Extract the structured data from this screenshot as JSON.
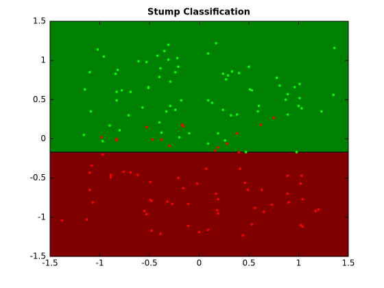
{
  "chart_data": {
    "type": "scatter",
    "title": "Stump Classification",
    "xlim": [
      -1.5,
      1.5
    ],
    "ylim": [
      -1.5,
      1.5
    ],
    "xticks": [
      -1.5,
      -1,
      -0.5,
      0,
      0.5,
      1,
      1.5
    ],
    "yticks": [
      -1.5,
      -1,
      -0.5,
      0,
      0.5,
      1,
      1.5
    ],
    "threshold": -0.17,
    "upper_color": "#008000",
    "lower_color": "#800000",
    "series": [
      {
        "color": "#00ff00",
        "x": [
          -1.02,
          -0.96,
          -1.1,
          -1.15,
          -1.09,
          -1.16,
          -0.9,
          -0.83,
          -0.84,
          -0.82,
          -0.78,
          -0.69,
          -0.83,
          -0.71,
          -0.8,
          -0.97,
          -0.61,
          -0.53,
          -0.42,
          -0.39,
          -0.51,
          -0.57,
          -0.51,
          -0.35,
          -0.31,
          -0.31,
          -0.22,
          -0.4,
          -0.21,
          -0.24,
          -0.29,
          -0.33,
          -0.4,
          -0.38,
          -0.29,
          -0.18,
          -0.24,
          -0.2,
          -0.1,
          0.17,
          0.09,
          0.24,
          0.29,
          0.27,
          0.33,
          0.4,
          0.09,
          0.13,
          0.24,
          0.32,
          0.38,
          0.19,
          0.26,
          0.09,
          0.5,
          0.51,
          0.53,
          0.59,
          0.6,
          0.78,
          0.81,
          0.87,
          0.89,
          0.96,
          1.01,
          1.01,
          1.0,
          1.03,
          0.98,
          0.89,
          1.23,
          1.36,
          1.35,
          0.47
        ],
        "values": [
          1.14,
          1.05,
          0.85,
          0.63,
          0.35,
          0.05,
          0.17,
          0.6,
          0.83,
          0.88,
          0.62,
          0.6,
          0.49,
          0.3,
          0.11,
          -0.03,
          0.99,
          0.98,
          1.06,
          0.9,
          0.66,
          0.4,
          0.65,
          1.12,
          1.2,
          1.01,
          1.03,
          0.79,
          0.92,
          0.85,
          0.73,
          0.35,
          0.21,
          0.08,
          0.42,
          0.49,
          0.37,
          0.02,
          0.07,
          1.22,
          1.09,
          0.83,
          0.81,
          0.76,
          0.86,
          0.84,
          0.49,
          0.46,
          0.37,
          0.3,
          0.31,
          0.07,
          -0.02,
          -0.06,
          0.92,
          0.63,
          0.62,
          0.35,
          0.42,
          0.78,
          0.68,
          0.5,
          0.57,
          0.66,
          0.7,
          0.52,
          0.42,
          0.39,
          -0.17,
          0.31,
          0.35,
          1.16,
          0.56,
          -0.17
        ]
      },
      {
        "color": "#ff0000",
        "x": [
          -1.38,
          -1.13,
          -1.1,
          -1.1,
          -1.07,
          -1.08,
          -0.98,
          -0.97,
          -0.89,
          -0.89,
          -0.83,
          -0.83,
          -0.76,
          -0.69,
          -0.62,
          -0.53,
          -0.49,
          -0.55,
          -0.53,
          -0.49,
          -0.48,
          -0.48,
          -0.39,
          -0.47,
          -0.38,
          -0.3,
          -0.32,
          -0.27,
          -0.21,
          -0.16,
          -0.17,
          -0.16,
          -0.11,
          -0.11,
          -0.02,
          0.0,
          0.07,
          0.09,
          0.17,
          0.19,
          0.18,
          0.19,
          0.16,
          0.19,
          0.28,
          0.38,
          0.41,
          0.4,
          0.46,
          0.49,
          0.44,
          0.62,
          0.63,
          0.56,
          0.53,
          0.65,
          0.75,
          0.73,
          0.89,
          0.89,
          0.9,
          1.03,
          1.02,
          1.04,
          1.02,
          1.04,
          1.17,
          1.2
        ],
        "values": [
          -1.04,
          -1.03,
          -0.43,
          -0.65,
          -0.81,
          -0.34,
          0.02,
          -0.2,
          -0.46,
          -0.49,
          -0.02,
          0.0,
          -0.42,
          -0.43,
          -0.46,
          0.15,
          -0.55,
          -0.92,
          -0.96,
          -0.78,
          -0.79,
          -1.17,
          -1.21,
          -0.01,
          -0.01,
          -0.09,
          -0.8,
          -0.83,
          -0.5,
          -0.63,
          0.18,
          0.16,
          -0.83,
          -1.11,
          -0.57,
          -1.19,
          -0.38,
          -1.16,
          -0.7,
          -0.77,
          -0.91,
          -0.95,
          -0.15,
          -0.11,
          -0.06,
          0.07,
          -0.38,
          -0.17,
          -0.56,
          -0.65,
          -1.23,
          0.18,
          -0.65,
          -0.88,
          -1.09,
          -0.93,
          0.27,
          -0.84,
          -0.47,
          -0.7,
          -0.81,
          -0.47,
          -0.57,
          -0.77,
          -1.1,
          -1.12,
          -0.92,
          -0.9
        ]
      }
    ]
  }
}
